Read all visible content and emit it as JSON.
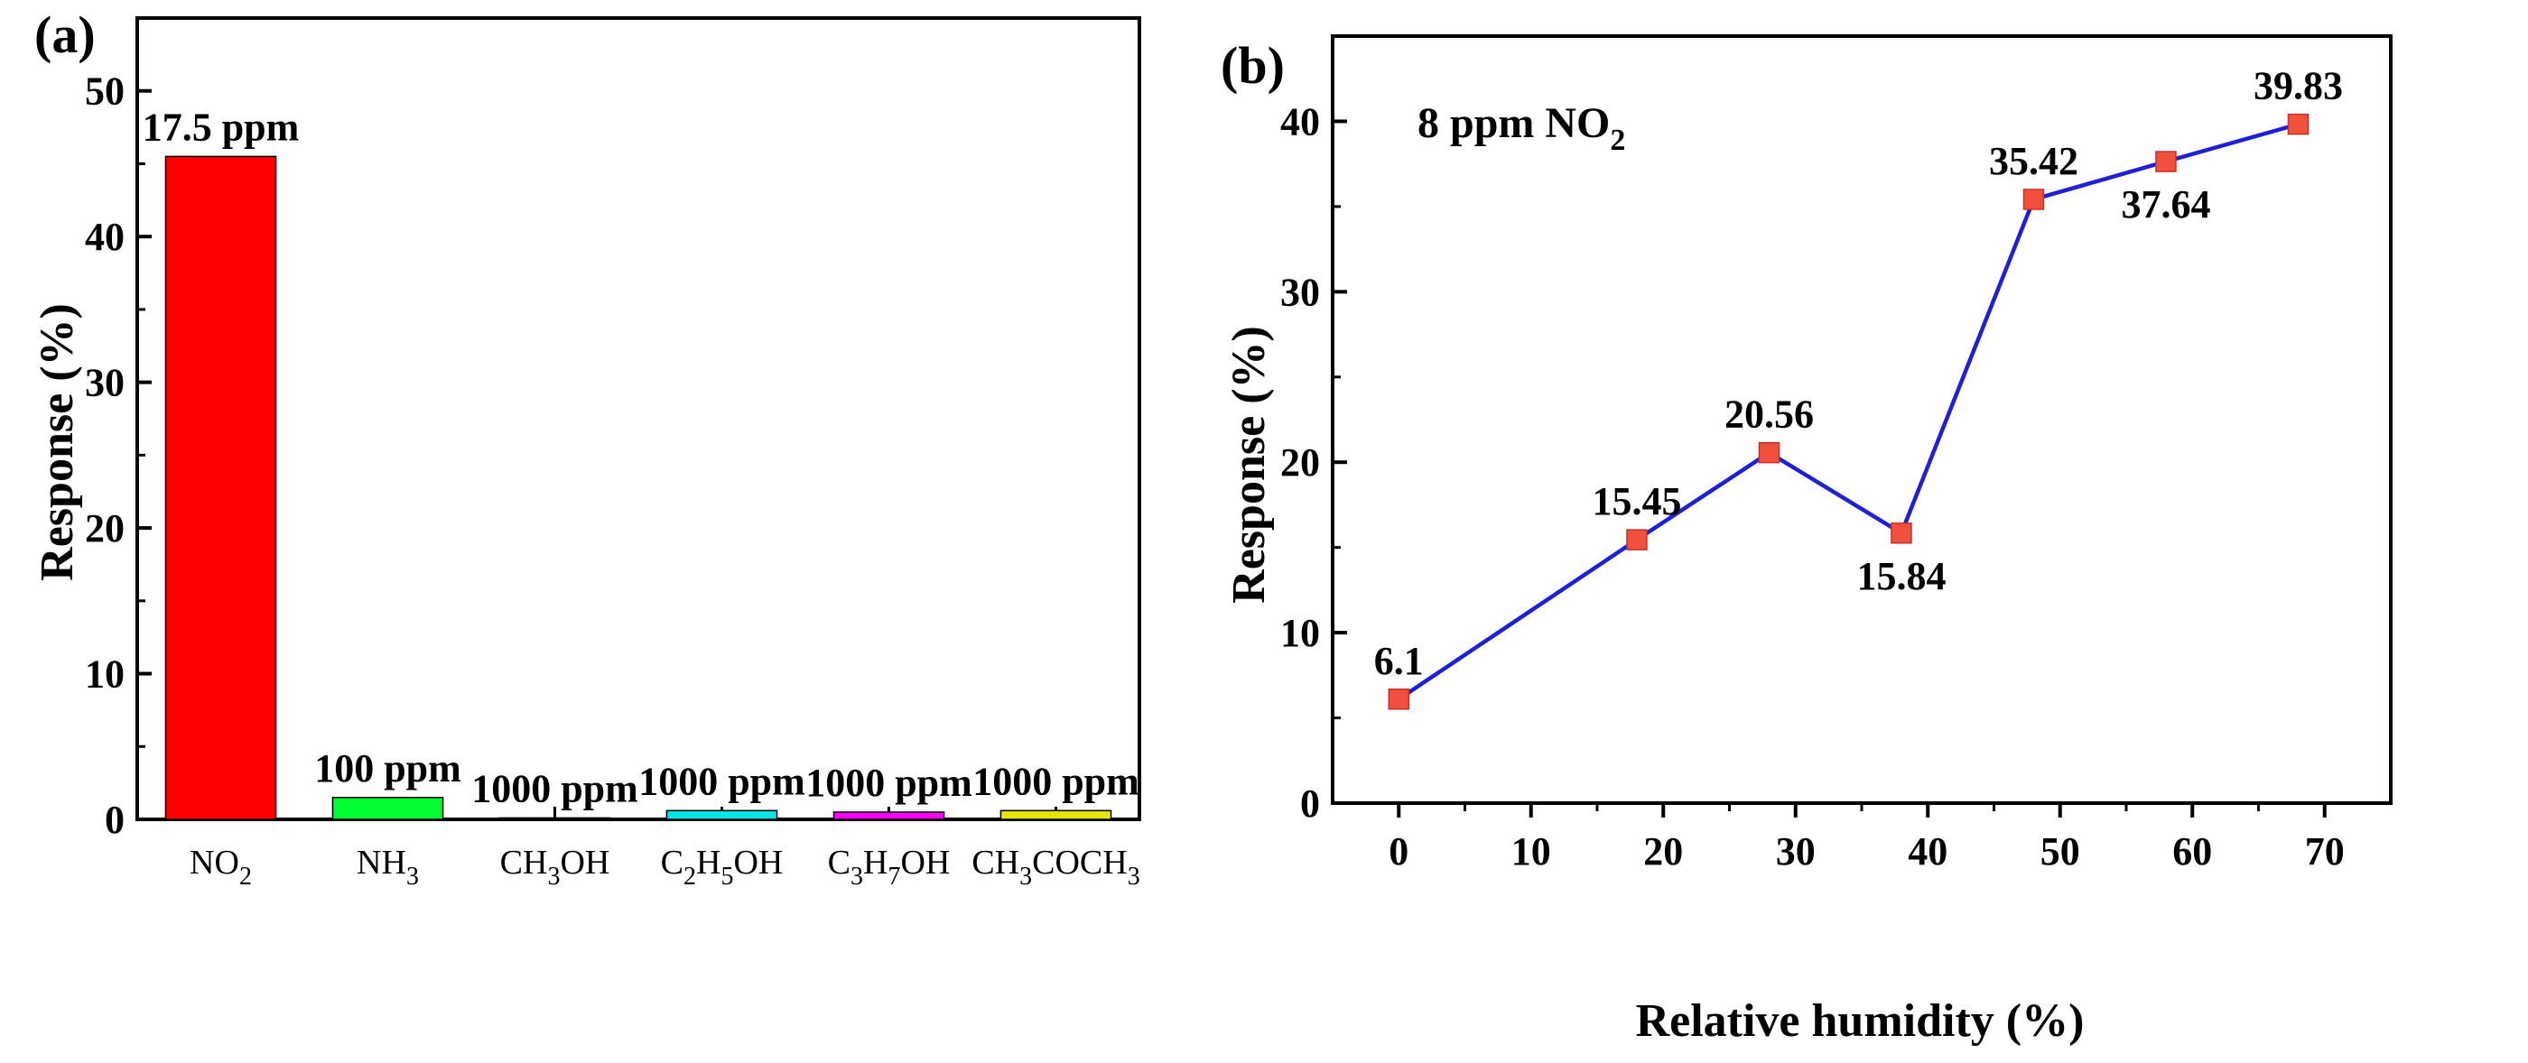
{
  "figure": {
    "colors": {
      "axis": "#000000",
      "line": "#1f1fd6",
      "marker": "#f0503c",
      "marker_edge": "#c8302a"
    }
  },
  "chart_data": [
    {
      "panel": "(a)",
      "type": "bar",
      "title": "",
      "xlabel": "",
      "ylabel": "Response (%)",
      "ylim": [
        0,
        55
      ],
      "yticks": [
        "0",
        "10",
        "20",
        "30",
        "40",
        "50"
      ],
      "grid": false,
      "categories": [
        {
          "name": "NO2",
          "parts": [
            {
              "t": "NO"
            },
            {
              "t": "2",
              "sub": true
            }
          ]
        },
        {
          "name": "NH3",
          "parts": [
            {
              "t": "NH"
            },
            {
              "t": "3",
              "sub": true
            }
          ]
        },
        {
          "name": "CH3OH",
          "parts": [
            {
              "t": "CH"
            },
            {
              "t": "3",
              "sub": true
            },
            {
              "t": "OH"
            }
          ]
        },
        {
          "name": "C2H5OH",
          "parts": [
            {
              "t": "C"
            },
            {
              "t": "2",
              "sub": true
            },
            {
              "t": "H"
            },
            {
              "t": "5",
              "sub": true
            },
            {
              "t": "OH"
            }
          ]
        },
        {
          "name": "C3H7OH",
          "parts": [
            {
              "t": "C"
            },
            {
              "t": "3",
              "sub": true
            },
            {
              "t": "H"
            },
            {
              "t": "7",
              "sub": true
            },
            {
              "t": "OH"
            }
          ]
        },
        {
          "name": "CH3COCH3",
          "parts": [
            {
              "t": "CH"
            },
            {
              "t": "3",
              "sub": true
            },
            {
              "t": "COCH"
            },
            {
              "t": "3",
              "sub": true
            }
          ]
        }
      ],
      "values": [
        45.5,
        1.5,
        0.1,
        0.6,
        0.5,
        0.6
      ],
      "bar_labels": [
        "17.5 ppm",
        "100 ppm",
        "1000 ppm",
        "1000 ppm",
        "1000 ppm",
        "1000 ppm"
      ],
      "colors": [
        "#ff0000",
        "#00ff33",
        "#000000",
        "#00e5e5",
        "#ff00ff",
        "#e6e600"
      ]
    },
    {
      "panel": "(b)",
      "type": "line",
      "title": "",
      "xlabel": "Relative humidity (%)",
      "ylabel": "Response (%)",
      "xlim": [
        -5,
        75
      ],
      "ylim": [
        0,
        45
      ],
      "xticks": [
        "0",
        "10",
        "20",
        "30",
        "40",
        "50",
        "60",
        "70"
      ],
      "yticks": [
        "0",
        "10",
        "20",
        "30",
        "40"
      ],
      "grid": false,
      "annotation": {
        "text": "8 ppm NO",
        "sub": "2"
      },
      "series": [
        {
          "name": "8 ppm NO2",
          "x": [
            0,
            18,
            28,
            38,
            48,
            58,
            68
          ],
          "y": [
            6.1,
            15.45,
            20.56,
            15.84,
            35.42,
            37.64,
            39.83
          ],
          "labels": [
            "6.1",
            "15.45",
            "20.56",
            "15.84",
            "35.42",
            "37.64",
            "39.83"
          ],
          "label_position": [
            "above",
            "above",
            "above",
            "below",
            "above",
            "below",
            "above"
          ]
        }
      ]
    }
  ]
}
